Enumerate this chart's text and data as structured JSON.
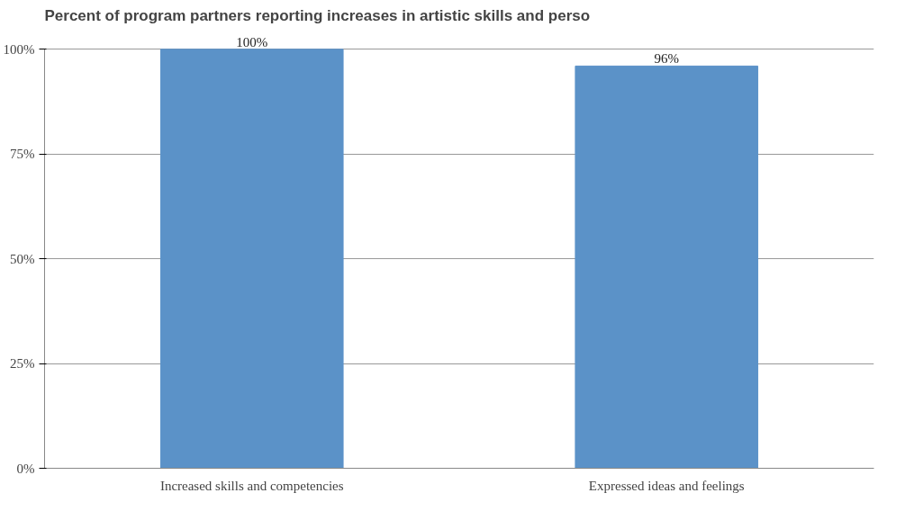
{
  "chart_data": {
    "type": "bar",
    "title": "Percent of program partners reporting increases in artistic skills and perso",
    "categories": [
      "Increased skills and competencies",
      "Expressed ideas and feelings"
    ],
    "values": [
      100,
      96
    ],
    "color": "#5b92c8",
    "value_labels": [
      "100%",
      "96%"
    ],
    "ylim": [
      0,
      100
    ],
    "yticks": [
      {
        "value": 0,
        "label": "0%"
      },
      {
        "value": 25,
        "label": "25%"
      },
      {
        "value": 50,
        "label": "50%"
      },
      {
        "value": 75,
        "label": "75%"
      },
      {
        "value": 100,
        "label": "100%"
      }
    ],
    "grid": "y"
  }
}
